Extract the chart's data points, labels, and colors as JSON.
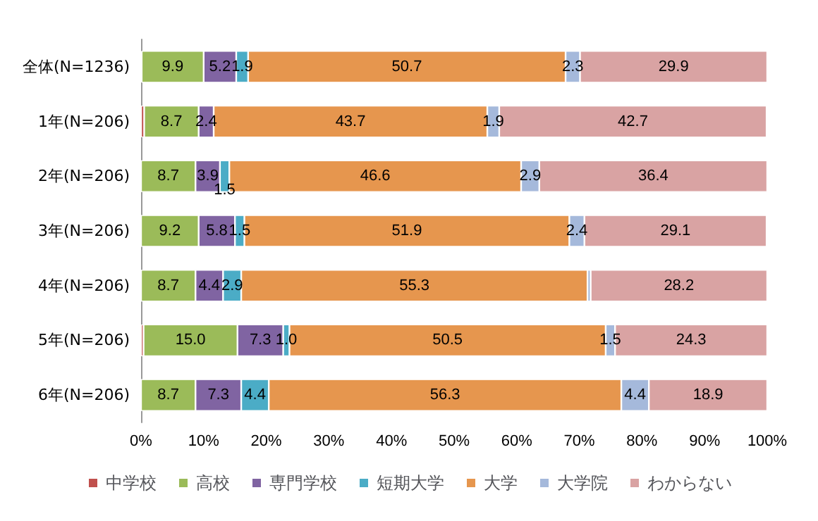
{
  "chart_data": {
    "type": "bar",
    "orientation": "horizontal",
    "stacked": true,
    "categories": [
      "全体(N=1236)",
      "1年(N=206)",
      "2年(N=206)",
      "3年(N=206)",
      "4年(N=206)",
      "5年(N=206)",
      "6年(N=206)"
    ],
    "series": [
      {
        "name": "中学校",
        "color": "#c0504d",
        "values": [
          0.1,
          0.5,
          0,
          0,
          0,
          0.4,
          0
        ],
        "value_labels": [
          null,
          null,
          null,
          null,
          null,
          null,
          null
        ]
      },
      {
        "name": "高校",
        "color": "#9bbb59",
        "values": [
          9.9,
          8.7,
          8.7,
          9.2,
          8.7,
          15.0,
          8.7
        ],
        "value_labels": [
          "9.9",
          "8.7",
          "8.7",
          "9.2",
          "8.7",
          "15.0",
          "8.7"
        ]
      },
      {
        "name": "専門学校",
        "color": "#8064a2",
        "values": [
          5.2,
          2.4,
          3.9,
          5.8,
          4.4,
          7.3,
          7.3
        ],
        "value_labels": [
          "5.2",
          "2.4",
          "3.9",
          "5.8",
          "4.4",
          "7.3",
          "7.3"
        ]
      },
      {
        "name": "短期大学",
        "color": "#4bacc6",
        "values": [
          1.9,
          0,
          1.5,
          1.5,
          2.9,
          1.0,
          4.4
        ],
        "value_labels": [
          "1.9",
          null,
          "1.5",
          "1.5",
          "2.9",
          "1.0",
          "4.4"
        ]
      },
      {
        "name": "大学",
        "color": "#e6964e",
        "values": [
          50.7,
          43.7,
          46.6,
          51.9,
          55.3,
          50.5,
          56.3
        ],
        "value_labels": [
          "50.7",
          "43.7",
          "46.6",
          "51.9",
          "55.3",
          "50.5",
          "56.3"
        ]
      },
      {
        "name": "大学院",
        "color": "#a5b9db",
        "values": [
          2.3,
          1.9,
          2.9,
          2.4,
          0.5,
          1.5,
          4.4
        ],
        "value_labels": [
          "2.3",
          "1.9",
          "2.9",
          "2.4",
          null,
          "1.5",
          "4.4"
        ]
      },
      {
        "name": "わからない",
        "color": "#d9a3a3",
        "values": [
          29.9,
          42.7,
          36.4,
          29.1,
          28.2,
          24.3,
          18.9
        ],
        "value_labels": [
          "29.9",
          "42.7",
          "36.4",
          "29.1",
          "28.2",
          "24.3",
          "18.9"
        ]
      }
    ],
    "xlim": [
      0,
      100
    ],
    "xticks": [
      {
        "value": 0,
        "label": "0%"
      },
      {
        "value": 10,
        "label": "10%"
      },
      {
        "value": 20,
        "label": "20%"
      },
      {
        "value": 30,
        "label": "30%"
      },
      {
        "value": 40,
        "label": "40%"
      },
      {
        "value": 50,
        "label": "50%"
      },
      {
        "value": 60,
        "label": "60%"
      },
      {
        "value": 70,
        "label": "70%"
      },
      {
        "value": 80,
        "label": "80%"
      },
      {
        "value": 90,
        "label": "90%"
      },
      {
        "value": 100,
        "label": "100%"
      }
    ],
    "legend": "bottom",
    "grid": false
  }
}
